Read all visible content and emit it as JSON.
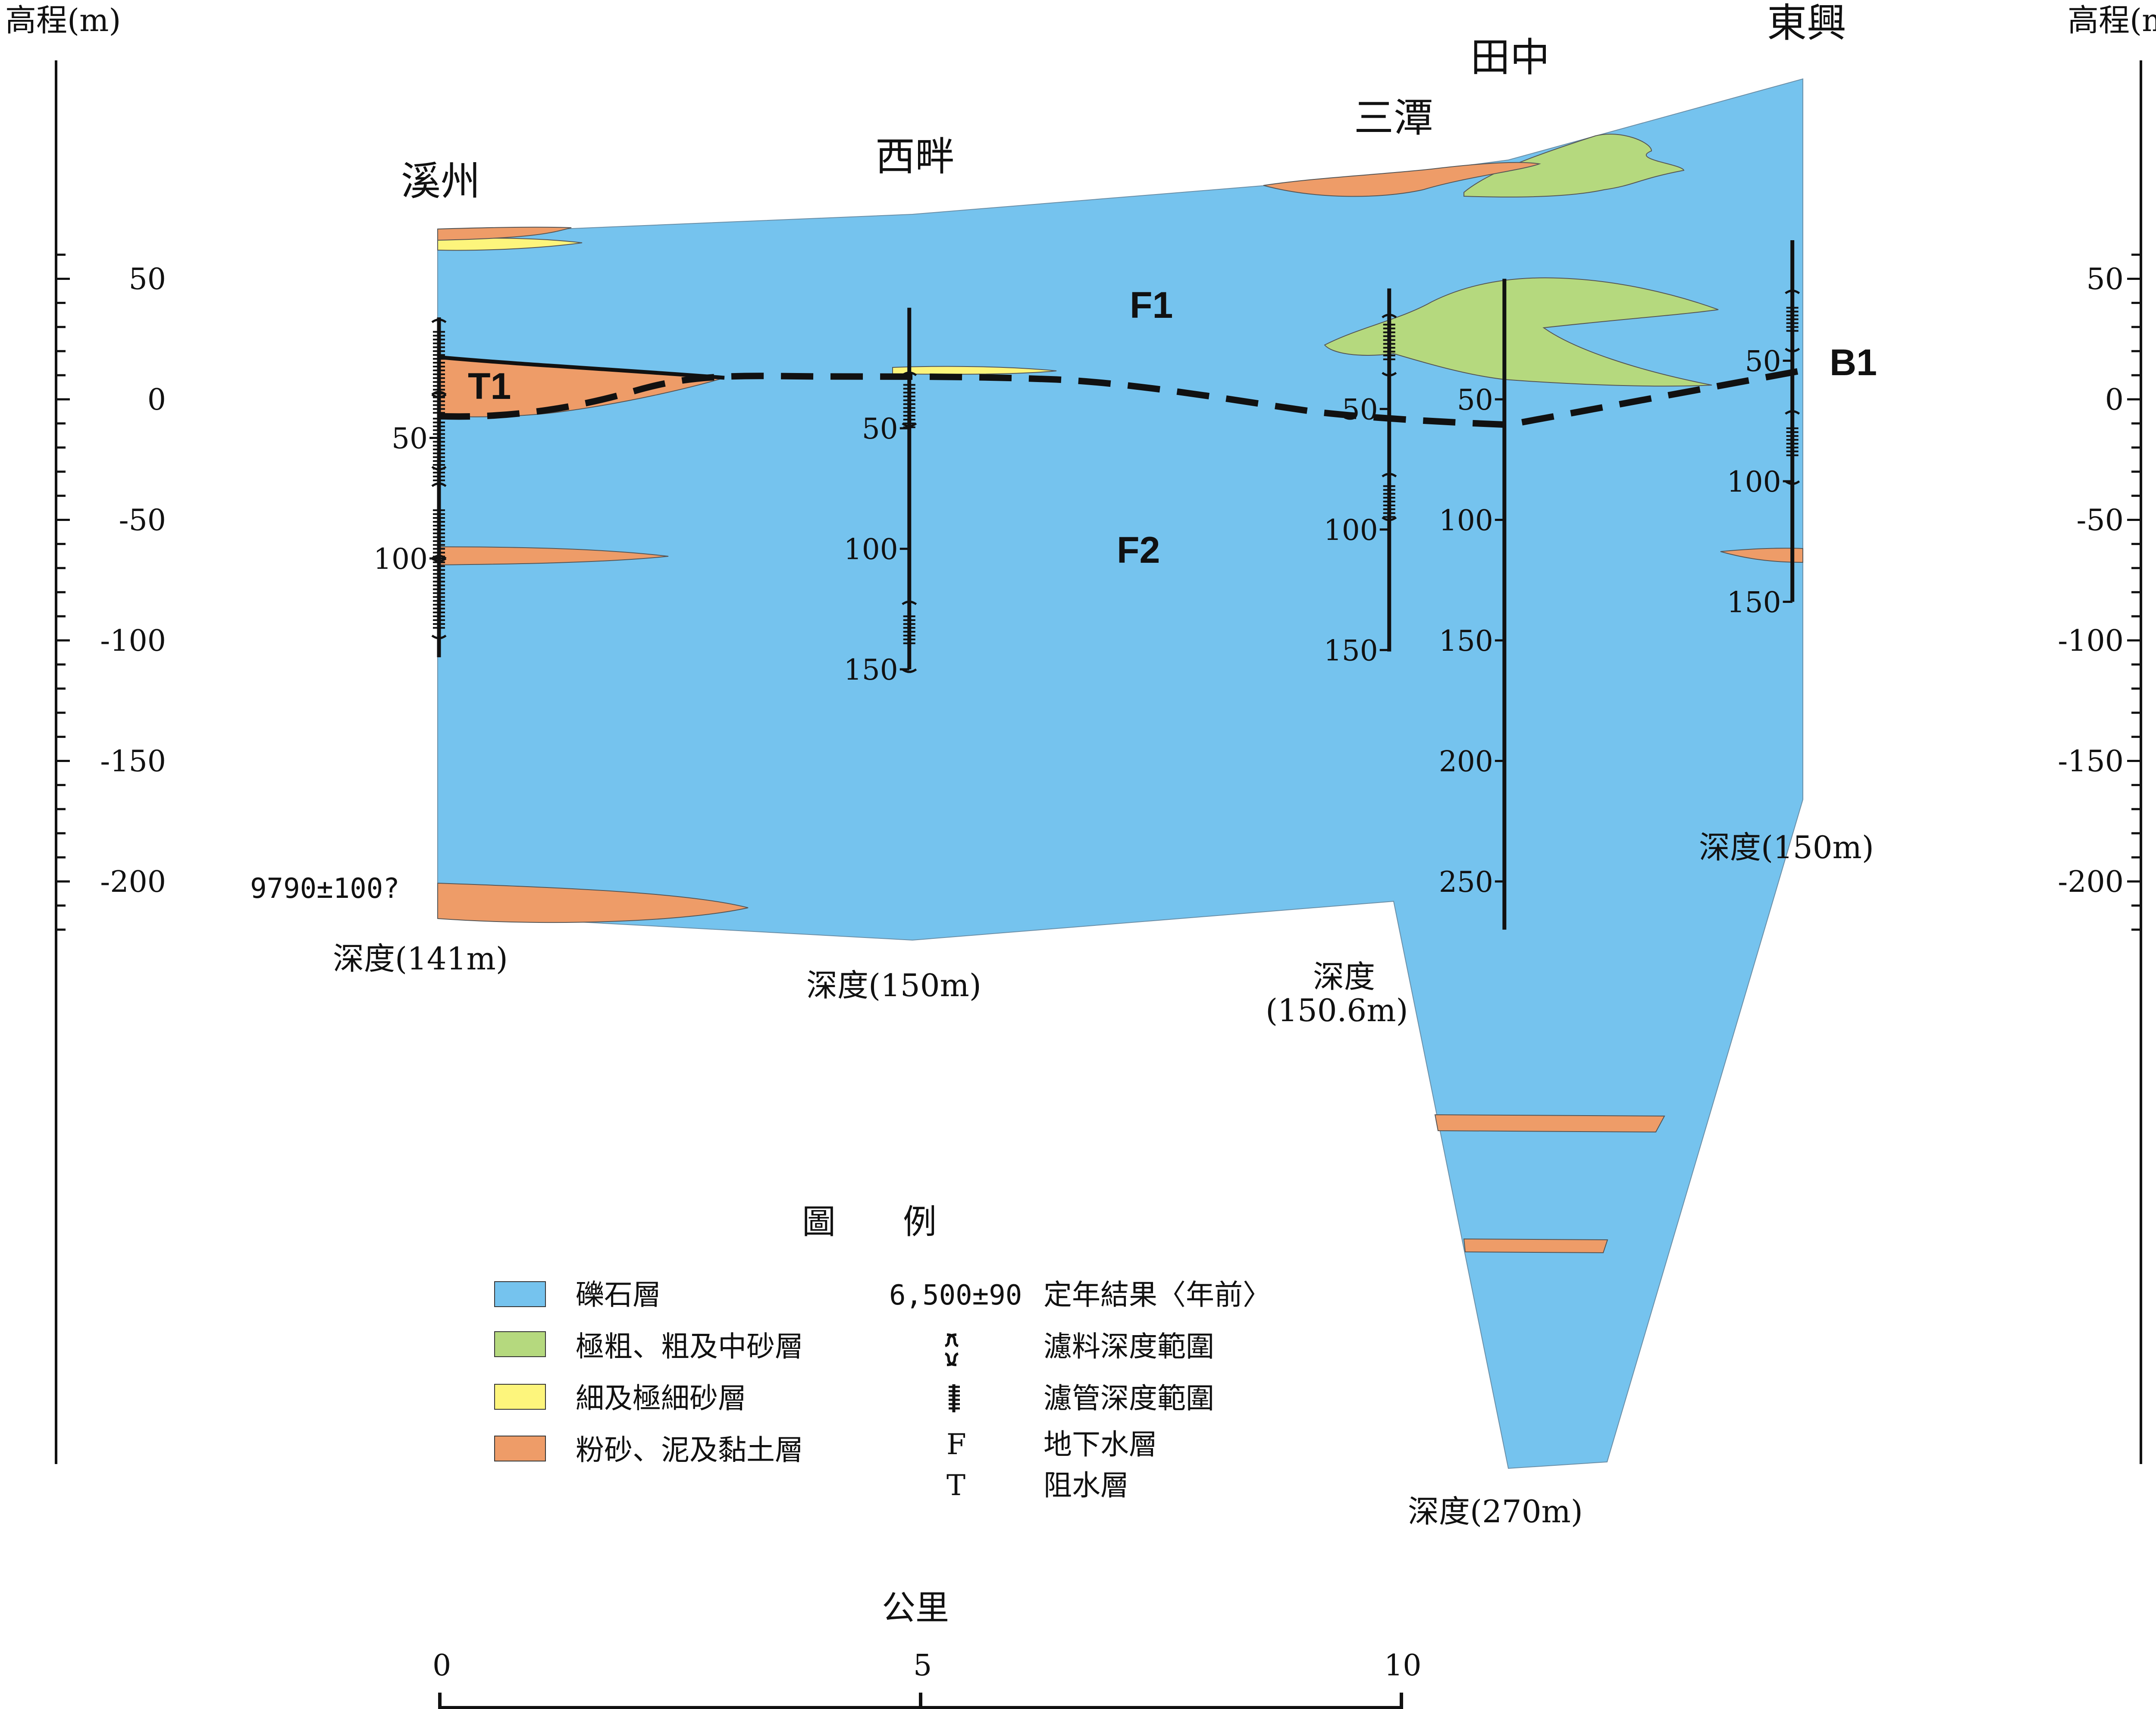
{
  "colors": {
    "gravel": "#75C3EE",
    "coarse_sand": "#B5D97E",
    "fine_sand": "#FDF57C",
    "silt_clay": "#EE9C68",
    "line": "#111111"
  },
  "elevation_axis": {
    "title_left": "高程(m)",
    "title_right": "高程(m)",
    "ticks": [
      {
        "value": 50,
        "label": "50"
      },
      {
        "value": 0,
        "label": "0"
      },
      {
        "value": -50,
        "label": "-50"
      },
      {
        "value": -100,
        "label": "-100"
      },
      {
        "value": -150,
        "label": "-150"
      },
      {
        "value": -200,
        "label": "-200"
      }
    ]
  },
  "wells": [
    {
      "name": "溪州",
      "km": 0,
      "top_elev": 34,
      "bottom_elev": -107,
      "depth_label": "深度(141m)",
      "depth_ticks": [
        {
          "depth": 50,
          "label": "50"
        },
        {
          "depth": 100,
          "label": "100"
        }
      ],
      "annotation": "9790±100?"
    },
    {
      "name": "西畔",
      "km": 4.9,
      "top_elev": 38,
      "bottom_elev": -112,
      "depth_label": "深度(150m)",
      "depth_ticks": [
        {
          "depth": 50,
          "label": "50"
        },
        {
          "depth": 100,
          "label": "100"
        },
        {
          "depth": 150,
          "label": "150"
        }
      ]
    },
    {
      "name": "三潭",
      "km": 9.9,
      "top_elev": 46,
      "bottom_elev": -104.6,
      "depth_label_line1": "深度",
      "depth_label_line2": "(150.6m)",
      "depth_ticks": [
        {
          "depth": 50,
          "label": "50"
        },
        {
          "depth": 100,
          "label": "100"
        },
        {
          "depth": 150,
          "label": "150"
        }
      ]
    },
    {
      "name": "田中",
      "km": 11.1,
      "top_elev": 50,
      "bottom_elev": -220,
      "depth_label": "深度(270m)",
      "depth_ticks": [
        {
          "depth": 50,
          "label": "50"
        },
        {
          "depth": 100,
          "label": "100"
        },
        {
          "depth": 150,
          "label": "150"
        },
        {
          "depth": 200,
          "label": "200"
        },
        {
          "depth": 250,
          "label": "250"
        }
      ]
    },
    {
      "name": "東興",
      "km": 14.1,
      "top_elev": 66,
      "bottom_elev": -84,
      "depth_label": "深度(150m)",
      "depth_ticks": [
        {
          "depth": 50,
          "label": "50"
        },
        {
          "depth": 100,
          "label": "100"
        },
        {
          "depth": 150,
          "label": "150"
        }
      ]
    }
  ],
  "layer_labels": {
    "f1": "F1",
    "f2": "F2",
    "t1": "T1",
    "b1": "B1"
  },
  "legend": {
    "title": "圖　　例",
    "items": [
      {
        "key": "gravel",
        "label": "礫石層"
      },
      {
        "key": "coarse_sand",
        "label": "極粗、粗及中砂層"
      },
      {
        "key": "fine_sand",
        "label": "細及極細砂層"
      },
      {
        "key": "silt_clay",
        "label": "粉砂、泥及黏土層"
      }
    ],
    "symbols": [
      {
        "symbol": "6,500±90",
        "label": "定年結果〈年前〉"
      },
      {
        "symbol": "bracket",
        "label": "濾料深度範圍"
      },
      {
        "symbol": "screen",
        "label": "濾管深度範圍"
      },
      {
        "symbol": "F",
        "label": "地下水層"
      },
      {
        "symbol": "T",
        "label": "阻水層"
      }
    ]
  },
  "scale_bar": {
    "title": "公里",
    "ticks": [
      "0",
      "5",
      "10"
    ]
  }
}
